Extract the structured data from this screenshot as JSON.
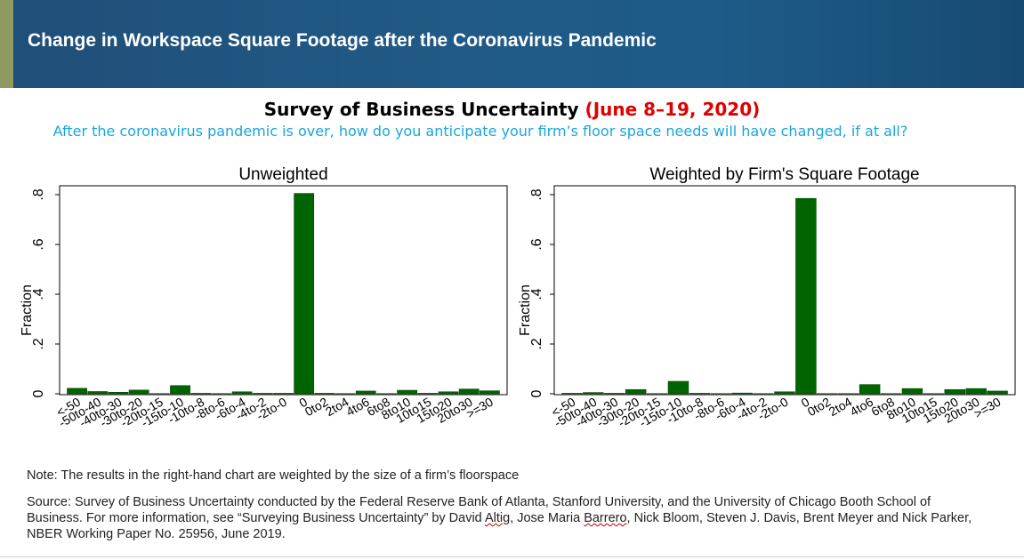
{
  "header": {
    "title": "Change in Workspace Square Footage after the Coronavirus Pandemic"
  },
  "survey": {
    "title": "Survey of Business Uncertainty",
    "dates": "(June 8–19, 2020)",
    "question": "After the coronavirus pandemic is over, how do you anticipate your firm’s floor space needs will have changed, if at all?"
  },
  "colors": {
    "header_bg": "#1f5585",
    "accent": "#8e9a62",
    "bar": "#006400",
    "dates": "#e00000",
    "question": "#1aa6d8"
  },
  "chart_data": [
    {
      "type": "bar",
      "title": "Unweighted",
      "ylabel": "Fraction",
      "xlabel": "",
      "ylim": [
        0,
        0.8
      ],
      "yticks": [
        0,
        0.2,
        0.4,
        0.6,
        0.8
      ],
      "ytick_labels": [
        "0",
        ".2",
        ".4",
        ".6",
        ".8"
      ],
      "grid": false,
      "categories": [
        "<-50",
        "-50to-40",
        "-40to-30",
        "-30to-20",
        "-20to-15",
        "-15to-10",
        "-10to-8",
        "-8to-6",
        "-6to-4",
        "-4to-2",
        "-2to-0",
        "0",
        "0to2",
        "2to4",
        "4to6",
        "6to8",
        "8to10",
        "10to15",
        "15to20",
        "20to30",
        ">=30"
      ],
      "values": [
        0.022,
        0.009,
        0.006,
        0.015,
        0.001,
        0.033,
        0.002,
        0.001,
        0.008,
        0.002,
        0.002,
        0.805,
        0.002,
        0.001,
        0.011,
        0.001,
        0.014,
        0.002,
        0.008,
        0.019,
        0.012
      ]
    },
    {
      "type": "bar",
      "title": "Weighted by Firm's Square Footage",
      "ylabel": "Fraction",
      "xlabel": "",
      "ylim": [
        0,
        0.8
      ],
      "yticks": [
        0,
        0.2,
        0.4,
        0.6,
        0.8
      ],
      "ytick_labels": [
        "0",
        ".2",
        ".4",
        ".6",
        ".8"
      ],
      "grid": false,
      "categories": [
        "<-50",
        "-50to-40",
        "-40to-30",
        "-30to-20",
        "-20to-15",
        "-15to-10",
        "-10to-8",
        "-8to-6",
        "-6to-4",
        "-4to-2",
        "-2to-0",
        "0",
        "0to2",
        "2to4",
        "4to6",
        "6to8",
        "8to10",
        "10to15",
        "15to20",
        "20to30",
        ">=30"
      ],
      "values": [
        0.002,
        0.005,
        0.002,
        0.017,
        0.001,
        0.05,
        0.002,
        0.001,
        0.003,
        0.001,
        0.008,
        0.785,
        0.001,
        0.001,
        0.037,
        0.001,
        0.021,
        0.001,
        0.017,
        0.021,
        0.011
      ]
    }
  ],
  "note": "Note: The results in the right-hand chart are weighted by the size of a firm’s floorspace",
  "source": {
    "part1": "Source: Survey of Business Uncertainty conducted by the Federal Reserve Bank of Atlanta, Stanford University, and the University of Chicago Booth School of Business. For more information, see “Surveying Business Uncertainty” by David ",
    "name1": "Altig",
    "part2": ", Jose Maria ",
    "name2": "Barrero",
    "part3": ", Nick Bloom, Steven J. Davis, Brent Meyer and Nick Parker, NBER Working Paper No. 25956, June 2019."
  }
}
